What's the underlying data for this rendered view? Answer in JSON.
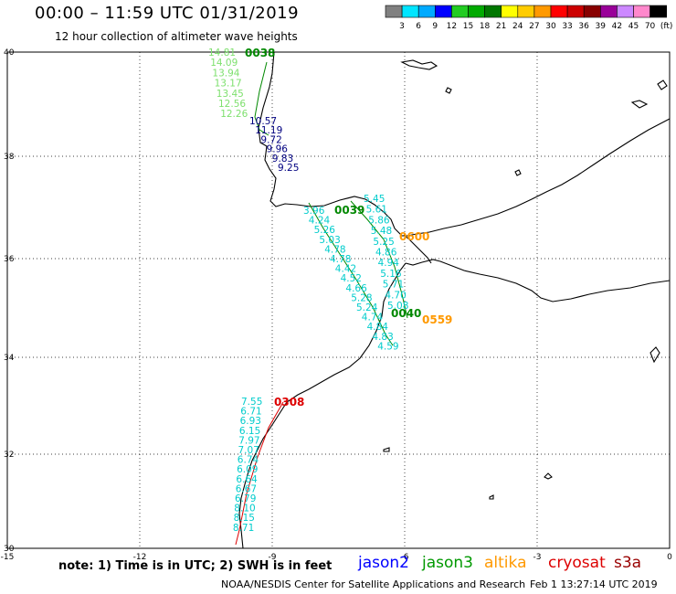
{
  "header": {
    "title": "00:00 – 11:59 UTC 01/31/2019",
    "subtitle": "12 hour collection of altimeter wave heights"
  },
  "legend": {
    "colors": [
      "#808080",
      "#00e5ff",
      "#00aaff",
      "#0000ff",
      "#22cc22",
      "#00aa00",
      "#007700",
      "#ffff00",
      "#ffcc00",
      "#ff9900",
      "#ff0000",
      "#cc0000",
      "#880000",
      "#990099",
      "#cc88ff",
      "#ff88cc",
      "#000000"
    ],
    "labels": [
      "3",
      "6",
      "9",
      "12",
      "15",
      "18",
      "21",
      "24",
      "27",
      "30",
      "33",
      "36",
      "39",
      "42",
      "45",
      "70",
      "(ft)"
    ]
  },
  "axes": {
    "x_ticks": [
      "-15",
      "-12",
      "-9",
      "-6",
      "-3",
      "0"
    ],
    "y_ticks": [
      "40",
      "38",
      "36",
      "34",
      "32",
      "30"
    ]
  },
  "tracks": [
    {
      "name": "jason3 0038",
      "color": "#7ee06e",
      "values": [
        "14.81",
        "14.09",
        "13.94",
        "13.17",
        "13.45",
        "12.56",
        "12.26"
      ]
    },
    {
      "name": "jason3 0038 nearshore",
      "color": "#000080",
      "values": [
        "10.57",
        "11.19",
        "9.72",
        "9.96",
        "9.83",
        "9.25"
      ]
    },
    {
      "name": "jason3 0039",
      "color": "#00cccc",
      "values": [
        "5.45",
        "5.61",
        "5.86",
        "5.48",
        "5.25",
        "4.86",
        "4.94",
        "5.16",
        "5.71",
        "4.70",
        "5.08"
      ]
    },
    {
      "name": "jason3 0040",
      "color": "#00cccc",
      "values": [
        "3.96",
        "4.24",
        "5.26",
        "5.03",
        "4.78",
        "4.78",
        "4.42",
        "4.52",
        "4.66",
        "5.28",
        "5.24",
        "4.74",
        "4.84",
        "4.83",
        "4.59"
      ]
    },
    {
      "name": "cryosat 0308",
      "color": "#00cccc",
      "values": [
        "7.55",
        "6.71",
        "6.93",
        "6.15",
        "7.97",
        "7.07",
        "6.74",
        "6.09",
        "6.64",
        "6.67",
        "6.79",
        "8.10",
        "8.15",
        "8.71"
      ]
    }
  ],
  "pass_labels": [
    {
      "text": "0038",
      "color": "#008800"
    },
    {
      "text": "0039",
      "color": "#008800"
    },
    {
      "text": "0040",
      "color": "#008800"
    },
    {
      "text": "0600",
      "color": "#ff9900"
    },
    {
      "text": "0559",
      "color": "#ff9900"
    },
    {
      "text": "0308",
      "color": "#dd0000"
    }
  ],
  "footer": {
    "note": "note: 1) Time is in UTC; 2) SWH is in feet",
    "satellites": [
      {
        "name": "jason2",
        "color": "#0000ff"
      },
      {
        "name": "jason3",
        "color": "#009900"
      },
      {
        "name": "altika",
        "color": "#ff9900"
      },
      {
        "name": "cryosat",
        "color": "#dd0000"
      },
      {
        "name": "s3a",
        "color": "#990000"
      }
    ],
    "credit": "NOAA/NESDIS Center for Satellite Applications and Research",
    "issued": "Feb  1 13:27:14 UTC 2019"
  }
}
